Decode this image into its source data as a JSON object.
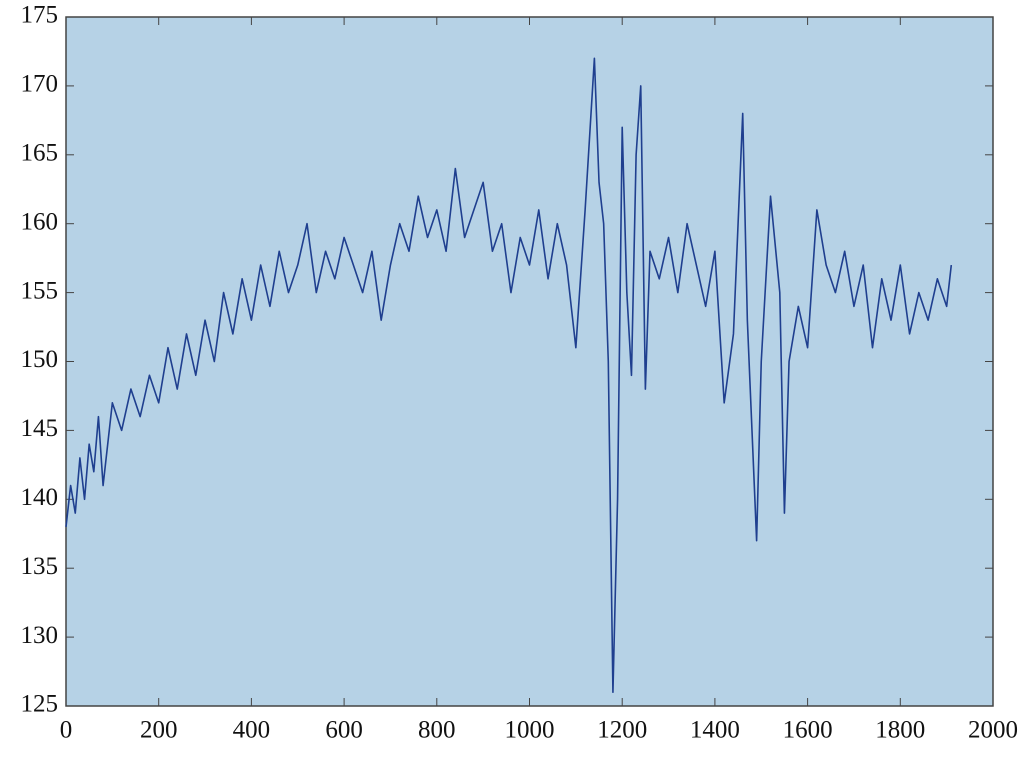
{
  "chart_data": {
    "type": "line",
    "x": [
      0,
      10,
      20,
      30,
      40,
      50,
      60,
      70,
      80,
      100,
      120,
      140,
      160,
      180,
      200,
      220,
      240,
      260,
      280,
      300,
      320,
      340,
      360,
      380,
      400,
      420,
      440,
      460,
      480,
      500,
      520,
      540,
      560,
      580,
      600,
      620,
      640,
      660,
      680,
      700,
      720,
      740,
      760,
      780,
      800,
      820,
      840,
      860,
      880,
      900,
      920,
      940,
      960,
      980,
      1000,
      1020,
      1040,
      1060,
      1080,
      1100,
      1120,
      1140,
      1150,
      1160,
      1170,
      1180,
      1190,
      1200,
      1210,
      1220,
      1230,
      1240,
      1250,
      1260,
      1280,
      1300,
      1320,
      1340,
      1360,
      1380,
      1400,
      1420,
      1440,
      1460,
      1470,
      1480,
      1490,
      1500,
      1520,
      1540,
      1550,
      1560,
      1580,
      1600,
      1620,
      1640,
      1660,
      1680,
      1700,
      1720,
      1740,
      1760,
      1780,
      1800,
      1820,
      1840,
      1860,
      1880,
      1900,
      1910
    ],
    "series": [
      {
        "color": "#1f3f8f",
        "values": [
          138,
          141,
          139,
          143,
          140,
          144,
          142,
          146,
          141,
          147,
          145,
          148,
          146,
          149,
          147,
          151,
          148,
          152,
          149,
          153,
          150,
          155,
          152,
          156,
          153,
          157,
          154,
          158,
          155,
          157,
          160,
          155,
          158,
          156,
          159,
          157,
          155,
          158,
          153,
          157,
          160,
          158,
          162,
          159,
          161,
          158,
          164,
          159,
          161,
          163,
          158,
          160,
          155,
          159,
          157,
          161,
          156,
          160,
          157,
          151,
          161,
          172,
          163,
          160,
          150,
          126,
          140,
          167,
          155,
          149,
          165,
          170,
          148,
          158,
          156,
          159,
          155,
          160,
          157,
          154,
          158,
          147,
          152,
          168,
          153,
          145,
          137,
          150,
          162,
          155,
          139,
          150,
          154,
          151,
          161,
          157,
          155,
          158,
          154,
          157,
          151,
          156,
          153,
          157,
          152,
          155,
          153,
          156,
          154,
          157
        ]
      }
    ],
    "xlim": [
      0,
      2000
    ],
    "ylim": [
      125,
      175
    ],
    "xticks": [
      0,
      200,
      400,
      600,
      800,
      1000,
      1200,
      1400,
      1600,
      1800,
      2000
    ],
    "yticks": [
      125,
      130,
      135,
      140,
      145,
      150,
      155,
      160,
      165,
      170,
      175
    ]
  }
}
